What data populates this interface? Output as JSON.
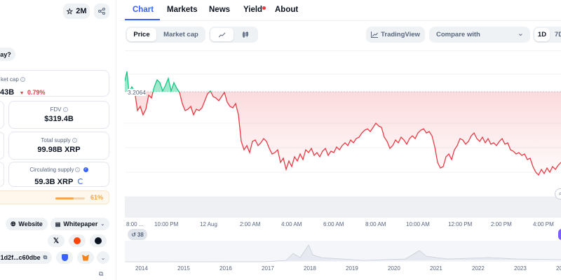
{
  "topbar": {
    "watchlist_count": "2M"
  },
  "left": {
    "question_text": "ay?",
    "market_cap": {
      "label": "ket cap",
      "value": "43B",
      "change": "0.79%"
    },
    "fdv": {
      "label": "FDV",
      "value": "$319.4B"
    },
    "total_supply": {
      "label": "Total supply",
      "value": "99.98B XRP"
    },
    "circulating_supply": {
      "label": "Circulating supply",
      "value": "59.3B XRP"
    },
    "progress": {
      "percent_text": "61%",
      "fraction": 0.61
    },
    "links": {
      "website": "Website",
      "whitepaper": "Whitepaper"
    },
    "contract": {
      "address": "1d2f...c60dbe"
    }
  },
  "tabs": [
    {
      "label": "Chart"
    },
    {
      "label": "Markets"
    },
    {
      "label": "News"
    },
    {
      "label": "Yield"
    },
    {
      "label": "About"
    }
  ],
  "toolbar": {
    "price": "Price",
    "market_cap": "Market cap",
    "tradingview": "TradingView",
    "compare": "Compare with",
    "range_1d": "1D",
    "range_7d": "7D"
  },
  "chart": {
    "reference_price": "3.2064",
    "events_badge": "38",
    "time_labels": [
      "8:00 ...",
      "10:00 PM",
      "12 Aug",
      "2:00 AM",
      "4:00 AM",
      "6:00 AM",
      "8:00 AM",
      "10:00 AM",
      "12:00 PM",
      "2:00 PM",
      "4:00 PM"
    ],
    "year_labels": [
      "2014",
      "2015",
      "2016",
      "2017",
      "2018",
      "2019",
      "2020",
      "2021",
      "2022",
      "2023",
      "20"
    ],
    "colors": {
      "down": "#ea3943",
      "up": "#16c784",
      "accent": "#3861fb"
    }
  }
}
